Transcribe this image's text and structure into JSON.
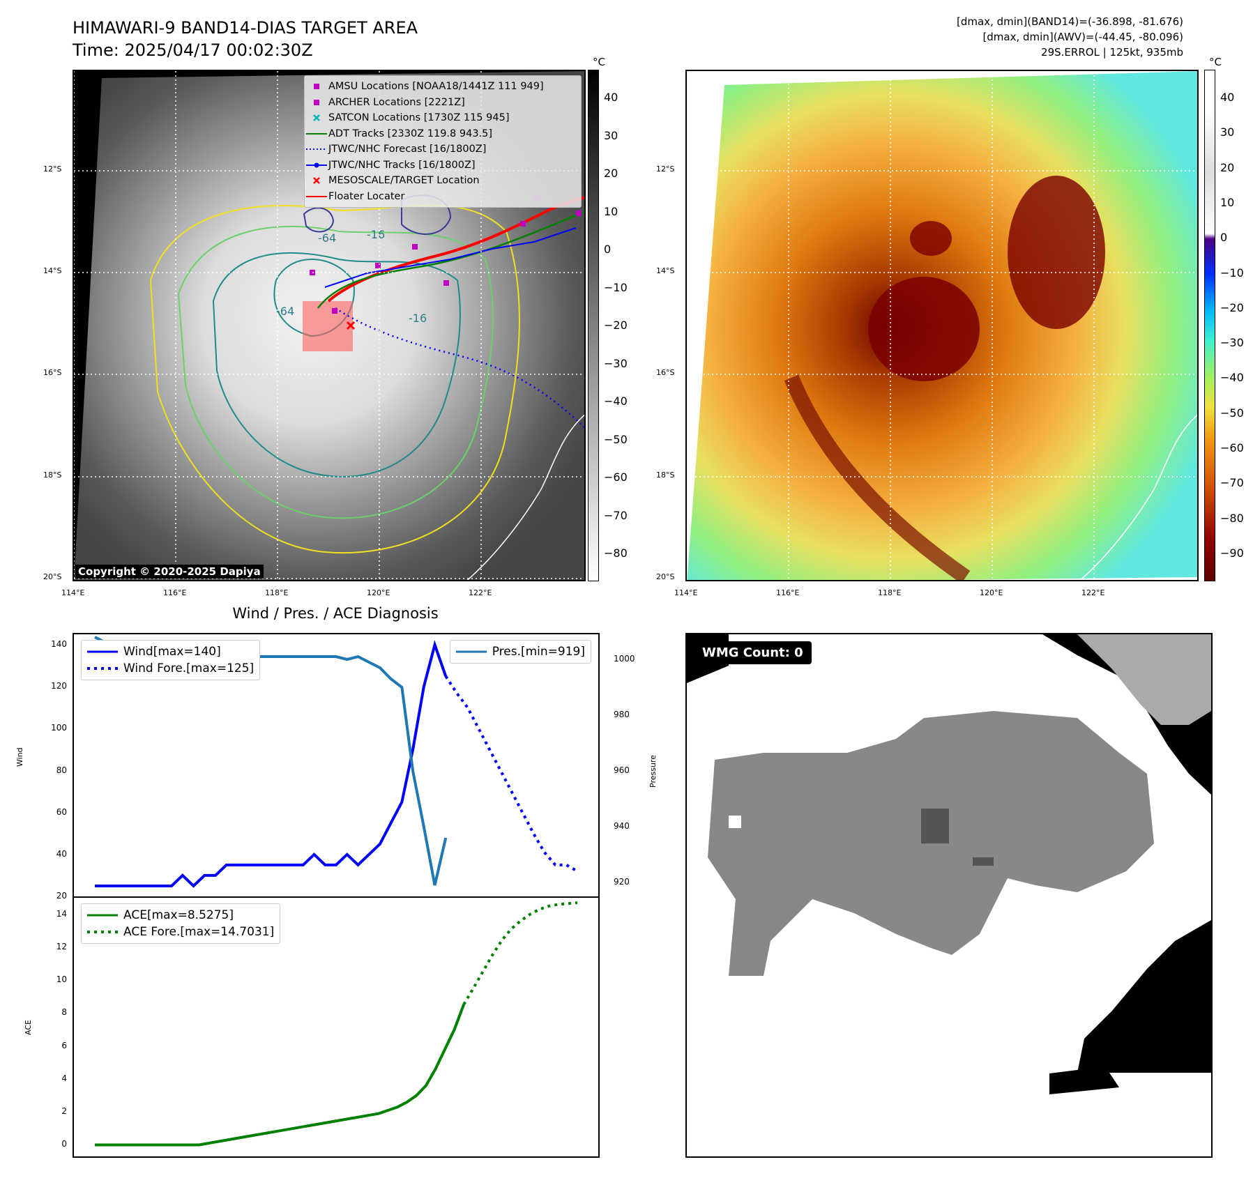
{
  "titles": {
    "main_line1": "HIMAWARI-9 BAND14-DIAS TARGET AREA",
    "main_line2": "Time: 2025/04/17 00:02:30Z",
    "info_line1": "[dmax, dmin](BAND14)=(-36.898, -81.676)",
    "info_line2": "[dmax, dmin](AWV)=(-44.45, -80.096)",
    "info_line3": "29S.ERROL | 125kt, 935mb",
    "unit_left": "°C",
    "unit_right": "°C",
    "copyright": "Copyright © 2020-2025 Dapiya",
    "diag_title": "Wind / Pres. / ACE Diagnosis",
    "wmg_count": "WMG Count: 0"
  },
  "map_axes": {
    "lat_labels": [
      "12°S",
      "14°S",
      "16°S",
      "18°S",
      "20°S"
    ],
    "lon_labels": [
      "114°E",
      "116°E",
      "118°E",
      "120°E",
      "122°E"
    ]
  },
  "legend": {
    "items": [
      {
        "label": "AMSU Locations [NOAA18/1441Z 111 949]",
        "symbol": "square",
        "color": "#c000c0"
      },
      {
        "label": "ARCHER Locations [2221Z]",
        "symbol": "square",
        "color": "#c000c0"
      },
      {
        "label": "SATCON Locations [1730Z 115 945]",
        "symbol": "x",
        "color": "#00b8b8"
      },
      {
        "label": "ADT Tracks [2330Z 119.8 943.5]",
        "symbol": "line",
        "color": "#008000"
      },
      {
        "label": "JTWC/NHC Forecast [16/1800Z]",
        "symbol": "dotted",
        "color": "#0000ff"
      },
      {
        "label": "JTWC/NHC Tracks [16/1800Z]",
        "symbol": "line-dot",
        "color": "#0000ff"
      },
      {
        "label": "MESOSCALE/TARGET Location",
        "symbol": "x",
        "color": "#ff0000"
      },
      {
        "label": "Floater Locater",
        "symbol": "line",
        "color": "#ff0000"
      }
    ]
  },
  "colorbar_left": {
    "ticks": [
      "40",
      "30",
      "20",
      "10",
      "0",
      "−10",
      "−20",
      "−30",
      "−40",
      "−50",
      "−60",
      "−70",
      "−80"
    ]
  },
  "colorbar_right": {
    "ticks": [
      "40",
      "30",
      "20",
      "10",
      "0",
      "−10",
      "−20",
      "−30",
      "−40",
      "−50",
      "−60",
      "−70",
      "−80",
      "−90"
    ]
  },
  "contour_labels": [
    "-64",
    "-64",
    "-16",
    "-16"
  ],
  "chart_data": [
    {
      "type": "line",
      "title": "Wind / Pres. / ACE Diagnosis",
      "ylabel": "Wind",
      "y2label": "Pressure",
      "ylim": [
        20,
        145
      ],
      "y2lim": [
        915,
        1009
      ],
      "yticks": [
        "20",
        "40",
        "60",
        "80",
        "100",
        "120",
        "140"
      ],
      "y2ticks": [
        "920",
        "940",
        "960",
        "980",
        "1000"
      ],
      "series": [
        {
          "name": "Wind[max=140]",
          "color": "#0000ff",
          "style": "solid",
          "values": [
            25,
            25,
            25,
            25,
            25,
            25,
            25,
            25,
            30,
            25,
            30,
            30,
            35,
            35,
            35,
            35,
            35,
            35,
            35,
            35,
            40,
            35,
            35,
            40,
            35,
            40,
            45,
            55,
            65,
            90,
            120,
            140,
            125
          ]
        },
        {
          "name": "Wind Fore.[max=125]",
          "color": "#0000ff",
          "style": "dotted",
          "start_index": 32,
          "values": [
            125,
            117,
            110,
            100,
            90,
            80,
            70,
            60,
            50,
            41,
            35,
            35,
            32
          ]
        },
        {
          "name": "Pres.[min=919]",
          "color": "#1f77b4",
          "style": "solid",
          "axis": "right",
          "values": [
            1008,
            1006,
            1006,
            1005,
            1005,
            1003,
            1002,
            1001,
            1002,
            1001,
            1001,
            1001,
            1001,
            1001,
            1001,
            1001,
            1001,
            1001,
            1001,
            1001,
            1001,
            1001,
            1001,
            1000,
            1001,
            999,
            997,
            993,
            990,
            960,
            940,
            919,
            936
          ]
        }
      ]
    },
    {
      "type": "line",
      "ylabel": "ACE",
      "ylim": [
        -0.7,
        15
      ],
      "yticks": [
        "0",
        "2",
        "4",
        "6",
        "8",
        "10",
        "12",
        "14"
      ],
      "series": [
        {
          "name": "ACE[max=8.5275]",
          "color": "#008000",
          "style": "solid",
          "values": [
            0,
            0,
            0,
            0,
            0,
            0,
            0,
            0,
            0,
            0,
            0,
            0,
            0.1,
            0.2,
            0.3,
            0.4,
            0.5,
            0.6,
            0.7,
            0.8,
            0.9,
            1.0,
            1.1,
            1.2,
            1.3,
            1.4,
            1.5,
            1.6,
            1.7,
            1.8,
            1.9,
            2.1,
            2.3,
            2.6,
            3.0,
            3.6,
            4.6,
            5.8,
            7.0,
            8.53
          ]
        },
        {
          "name": "ACE Fore.[max=14.7031]",
          "color": "#008000",
          "style": "dotted",
          "start_index": 39,
          "values": [
            8.53,
            9.5,
            10.5,
            11.5,
            12.4,
            13.1,
            13.6,
            14.0,
            14.3,
            14.5,
            14.6,
            14.65,
            14.7
          ]
        }
      ]
    }
  ]
}
